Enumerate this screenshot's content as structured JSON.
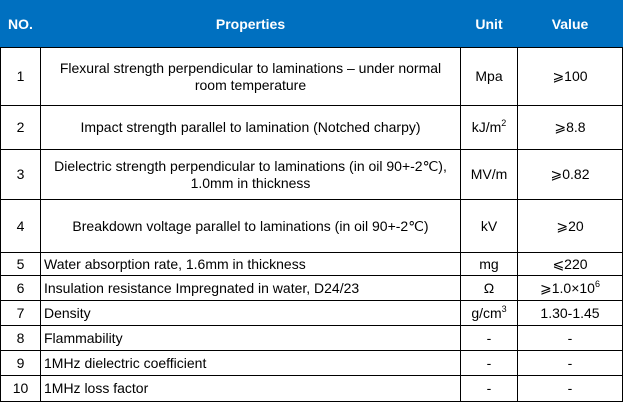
{
  "table": {
    "header": [
      "NO.",
      "Properties",
      "Unit",
      "Value"
    ],
    "rows": [
      [
        "1",
        "Flexural strength perpendicular to laminations – under normal room temperature",
        "Mpa",
        "⩾100"
      ],
      [
        "2",
        "Impact strength parallel to lamination (Notched charpy)",
        {
          "base": "kJ/m",
          "sup": "2"
        },
        "⩾8.8"
      ],
      [
        "3",
        "Dielectric strength perpendicular to laminations (in oil 90+-2℃), 1.0mm in thickness",
        "MV/m",
        "⩾0.82"
      ],
      [
        "4",
        "Breakdown voltage parallel to laminations (in oil 90+-2℃)",
        "kV",
        "⩾20"
      ],
      [
        "5",
        "Water absorption rate, 1.6mm in thickness",
        "mg",
        "⩽220"
      ],
      [
        "6",
        "Insulation resistance Impregnated in water, D24/23",
        "Ω",
        {
          "base": "⩾1.0×10",
          "sup": "6"
        }
      ],
      [
        "7",
        "Density",
        {
          "base": "g/cm",
          "sup": "3"
        },
        "1.30-1.45"
      ],
      [
        "8",
        "Flammability",
        "-",
        "-"
      ],
      [
        "9",
        "1MHz dielectric coefficient",
        "-",
        "-"
      ],
      [
        "10",
        "1MHz loss factor",
        "-",
        "-"
      ]
    ]
  }
}
